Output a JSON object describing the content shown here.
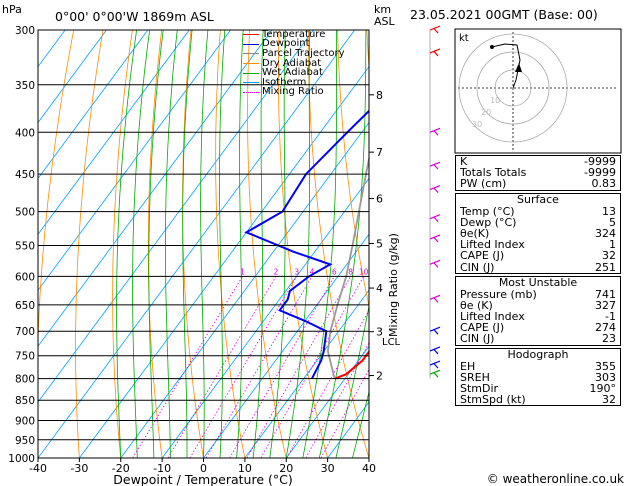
{
  "header": {
    "location": "0°00' 0°00'W 1869m ASL",
    "datetime": "23.05.2021 00GMT (Base: 00)",
    "hpa_label": "hPa",
    "km_label": "km",
    "asl_label": "ASL",
    "mixing_label": "Mixing Ratio (g/kg)",
    "lcl_label": "LCL",
    "copyright": "© weatheronline.co.uk"
  },
  "legend": [
    {
      "label": "Temperature",
      "color": "#ff0000"
    },
    {
      "label": "Dewpoint",
      "color": "#0000ff"
    },
    {
      "label": "Parcel Trajectory",
      "color": "#888888"
    },
    {
      "label": "Dry Adiabat",
      "color": "#ff8c00"
    },
    {
      "label": "Wet Adiabat",
      "color": "#00aa00"
    },
    {
      "label": "Isotherm",
      "color": "#00a0ff"
    },
    {
      "label": "Mixing Ratio",
      "color": "#dd00dd"
    }
  ],
  "chart_data": {
    "type": "line",
    "title": "Skew-T log-P diagram",
    "xlabel": "Dewpoint / Temperature (°C)",
    "ylabel": "hPa",
    "xlim": [
      -40,
      40
    ],
    "ylim": [
      1000,
      300
    ],
    "x_ticks": [
      "-40",
      "-30",
      "-20",
      "-10",
      "0",
      "10",
      "20",
      "30",
      "40"
    ],
    "pressure_levels": [
      "300",
      "350",
      "400",
      "450",
      "500",
      "550",
      "600",
      "650",
      "700",
      "750",
      "800",
      "850",
      "900",
      "950",
      "1000"
    ],
    "km_ticks": [
      {
        "label": "8",
        "p": 360
      },
      {
        "label": "7",
        "p": 423
      },
      {
        "label": "6",
        "p": 482
      },
      {
        "label": "5",
        "p": 547
      },
      {
        "label": "4",
        "p": 620
      },
      {
        "label": "3",
        "p": 701
      },
      {
        "label": "2",
        "p": 793
      }
    ],
    "mixing_ratio_labels": [
      "1",
      "2",
      "3",
      "4",
      "6",
      "8",
      "10",
      "15",
      "20",
      "25"
    ],
    "series": [
      {
        "name": "Temperature",
        "points": [
          [
            800,
            17.5
          ],
          [
            790,
            19.5
          ],
          [
            760,
            21
          ],
          [
            741,
            21
          ],
          [
            700,
            19
          ],
          [
            650,
            14
          ],
          [
            600,
            8.5
          ],
          [
            550,
            3
          ],
          [
            500,
            -2.5
          ],
          [
            450,
            -8.5
          ],
          [
            400,
            -15
          ],
          [
            350,
            -22.5
          ],
          [
            300,
            -30.5
          ]
        ]
      },
      {
        "name": "Dewpoint",
        "points": [
          [
            800,
            12
          ],
          [
            760,
            11
          ],
          [
            741,
            10
          ],
          [
            700,
            7
          ],
          [
            680,
            0
          ],
          [
            660,
            -8
          ],
          [
            640,
            -8
          ],
          [
            625,
            -9
          ],
          [
            600,
            -7
          ],
          [
            580,
            -4
          ],
          [
            560,
            -15
          ],
          [
            530,
            -30
          ],
          [
            500,
            -25
          ],
          [
            450,
            -26
          ],
          [
            400,
            -23.5
          ],
          [
            360,
            -21
          ],
          [
            350,
            -22
          ],
          [
            300,
            -36
          ]
        ]
      },
      {
        "name": "Parcel Trajectory",
        "points": [
          [
            800,
            17.5
          ],
          [
            741,
            11
          ],
          [
            700,
            8
          ],
          [
            650,
            5
          ],
          [
            600,
            2
          ],
          [
            550,
            -2
          ],
          [
            500,
            -6.5
          ],
          [
            450,
            -11.5
          ],
          [
            400,
            -17
          ],
          [
            350,
            -23.5
          ],
          [
            300,
            -31
          ]
        ]
      }
    ],
    "lcl_p": 720
  },
  "hodograph": {
    "label": "kt",
    "rings": [
      "10",
      "20",
      "30"
    ]
  },
  "indices": {
    "top": [
      {
        "label": "K",
        "value": "-9999"
      },
      {
        "label": "Totals Totals",
        "value": "-9999"
      },
      {
        "label": "PW (cm)",
        "value": "0.83"
      }
    ],
    "surface": {
      "title": "Surface",
      "rows": [
        {
          "label": "Temp (°C)",
          "value": "13"
        },
        {
          "label": "Dewp (°C)",
          "value": "5"
        },
        {
          "label": "θe(K)",
          "value": "324"
        },
        {
          "label": "Lifted Index",
          "value": "1"
        },
        {
          "label": "CAPE (J)",
          "value": "32"
        },
        {
          "label": "CIN (J)",
          "value": "251"
        }
      ]
    },
    "unstable": {
      "title": "Most Unstable",
      "rows": [
        {
          "label": "Pressure (mb)",
          "value": "741"
        },
        {
          "label": "θe (K)",
          "value": "327"
        },
        {
          "label": "Lifted Index",
          "value": "-1"
        },
        {
          "label": "CAPE (J)",
          "value": "274"
        },
        {
          "label": "CIN (J)",
          "value": "23"
        }
      ]
    },
    "hodo": {
      "title": "Hodograph",
      "rows": [
        {
          "label": "EH",
          "value": "355"
        },
        {
          "label": "SREH",
          "value": "303"
        },
        {
          "label": "StmDir",
          "value": "190°"
        },
        {
          "label": "StmSpd (kt)",
          "value": "32"
        }
      ]
    }
  },
  "colors": {
    "temperature": "#ff0000",
    "dewpoint": "#0000ff",
    "parcel": "#999999",
    "dry": "#ff8c00",
    "wet": "#00aa00",
    "isotherm": "#00a0ff",
    "mixing": "#dd00dd",
    "wind_low": "#00aa00",
    "wind_mid": "#0000ff",
    "wind_high": "#dd00dd",
    "wind_top": "#ff0000"
  }
}
